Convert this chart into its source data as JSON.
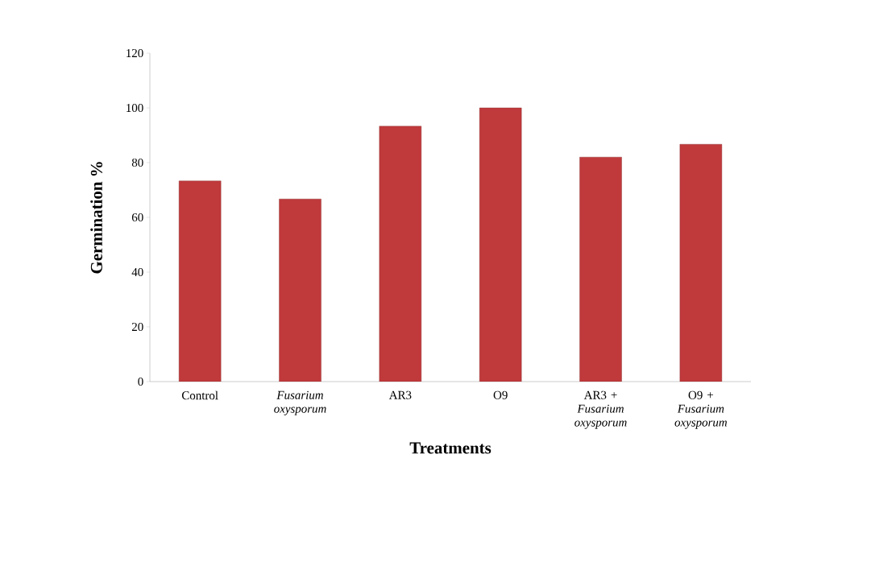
{
  "chart_data": {
    "type": "bar",
    "xlabel": "Treatments",
    "ylabel": "Germination %",
    "categories": [
      "Control",
      "*Fusarium oxysporum*",
      "AR3",
      "O9",
      "AR3 + *Fusarium oxysporum*",
      "O9 + *Fusarium oxysporum*"
    ],
    "values": [
      73.3,
      66.7,
      93.3,
      100,
      82,
      86.7
    ],
    "color": "#c0393b",
    "ylim": [
      0,
      120
    ],
    "yticks": [
      0,
      20,
      40,
      60,
      80,
      100,
      120
    ],
    "grid": false
  }
}
